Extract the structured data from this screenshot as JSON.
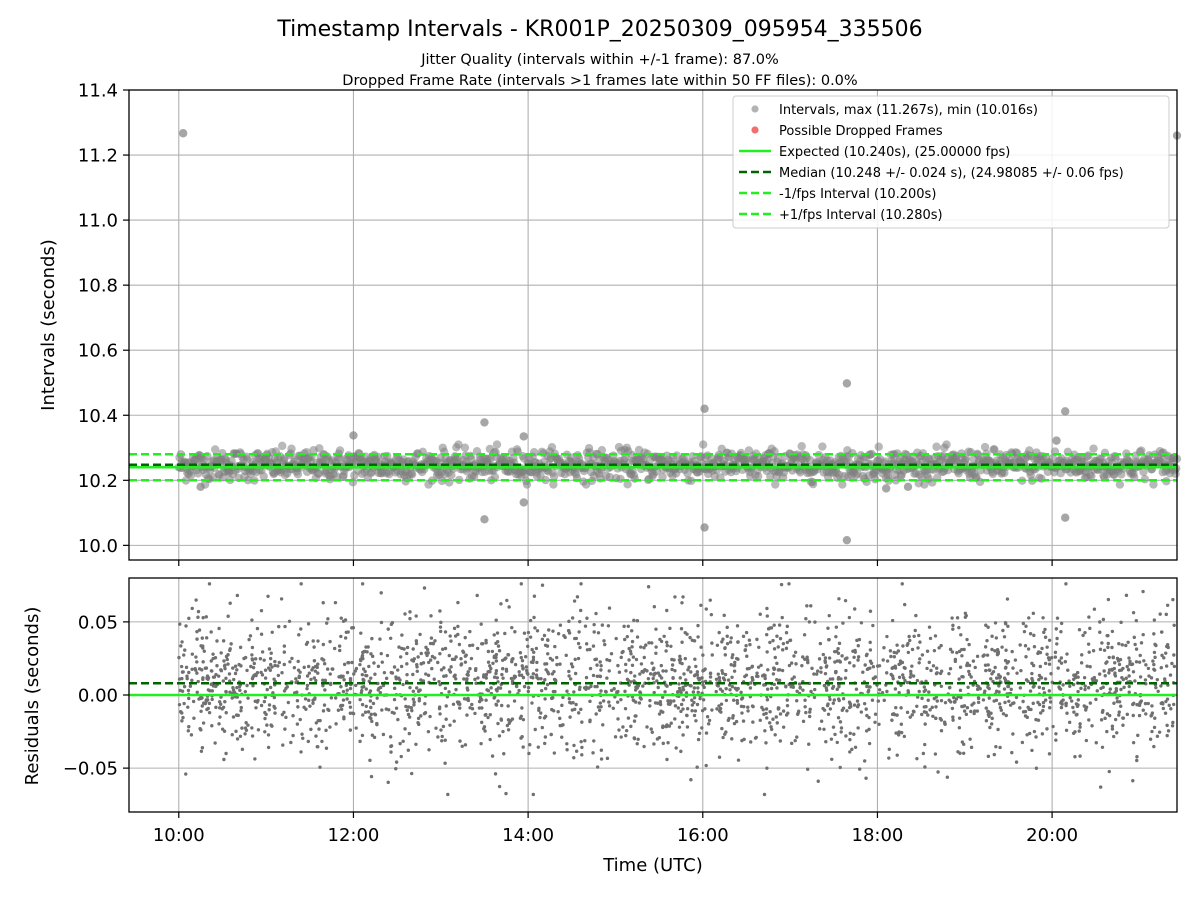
{
  "chart_data": [
    {
      "type": "scatter",
      "title": "Timestamp Intervals - KR001P_20250309_095954_335506",
      "subtitle_lines": [
        "Jitter Quality (intervals within +/-1 frame): 87.0%",
        "Dropped Frame Rate (intervals >1 frames late within 50 FF files): 0.0%"
      ],
      "ylabel": "Intervals (seconds)",
      "ylim": [
        9.955,
        11.4
      ],
      "yticks": [
        10.0,
        10.2,
        10.4,
        10.6,
        10.8,
        11.0,
        11.2,
        11.4
      ],
      "ytick_labels": [
        "10.0",
        "10.2",
        "10.4",
        "10.6",
        "10.8",
        "11.0",
        "11.2",
        "11.4"
      ],
      "xlim_hours": [
        9.43,
        21.43
      ],
      "grid": true,
      "legend_position": "top-right",
      "legend": [
        "Intervals, max (11.267s), min (10.016s)",
        "Possible Dropped Frames",
        "Expected (10.240s), (25.00000 fps)",
        "Median (10.248 +/- 0.024 s), (24.98085 +/- 0.06 fps)",
        "-1/fps Interval (10.200s)",
        "+1/fps Interval (10.280s)"
      ],
      "reference_lines": [
        {
          "name": "Expected",
          "y": 10.24,
          "color": "#22ee22",
          "style": "solid"
        },
        {
          "name": "Median",
          "y": 10.248,
          "color": "#006400",
          "style": "dashed"
        },
        {
          "name": "-1/fps Interval",
          "y": 10.2,
          "color": "#22ee22",
          "style": "dashed"
        },
        {
          "name": "+1/fps Interval",
          "y": 10.28,
          "color": "#22ee22",
          "style": "dashed"
        }
      ],
      "band": {
        "t_start": 10.0,
        "t_end": 21.43,
        "y_low": 10.205,
        "y_high": 10.29
      },
      "outliers": [
        {
          "t": 10.05,
          "y": 11.267
        },
        {
          "t": 21.43,
          "y": 11.26
        },
        {
          "t": 12.0,
          "y": 10.338
        },
        {
          "t": 13.5,
          "y": 10.378
        },
        {
          "t": 13.5,
          "y": 10.08
        },
        {
          "t": 13.95,
          "y": 10.335
        },
        {
          "t": 13.95,
          "y": 10.132
        },
        {
          "t": 16.02,
          "y": 10.42
        },
        {
          "t": 16.02,
          "y": 10.055
        },
        {
          "t": 17.65,
          "y": 10.498
        },
        {
          "t": 17.65,
          "y": 10.016
        },
        {
          "t": 20.15,
          "y": 10.412
        },
        {
          "t": 20.15,
          "y": 10.085
        },
        {
          "t": 20.05,
          "y": 10.322
        },
        {
          "t": 18.1,
          "y": 10.175
        },
        {
          "t": 18.35,
          "y": 10.18
        },
        {
          "t": 10.25,
          "y": 10.18
        }
      ],
      "colors": {
        "points": "#808080",
        "dropped": "#ee5555",
        "expected": "#22ee22",
        "median": "#006400"
      }
    },
    {
      "type": "scatter",
      "ylabel": "Residuals (seconds)",
      "xlabel": "Time (UTC)",
      "ylim": [
        -0.08,
        0.08
      ],
      "yticks": [
        -0.05,
        0.0,
        0.05
      ],
      "ytick_labels": [
        "−0.05",
        "0.00",
        "0.05"
      ],
      "xlim_hours": [
        9.43,
        21.43
      ],
      "xticks_hours": [
        10,
        12,
        14,
        16,
        18,
        20
      ],
      "xtick_labels": [
        "10:00",
        "12:00",
        "14:00",
        "16:00",
        "18:00",
        "20:00"
      ],
      "grid": true,
      "reference_lines": [
        {
          "name": "Zero",
          "y": 0.0,
          "color": "#22ee22",
          "style": "solid"
        },
        {
          "name": "Median",
          "y": 0.008,
          "color": "#006400",
          "style": "dashed"
        }
      ],
      "residual_spread": {
        "t_start": 10.0,
        "t_end": 21.43,
        "min": -0.068,
        "max": 0.076,
        "sd": 0.024
      },
      "colors": {
        "points": "#707070"
      }
    }
  ]
}
